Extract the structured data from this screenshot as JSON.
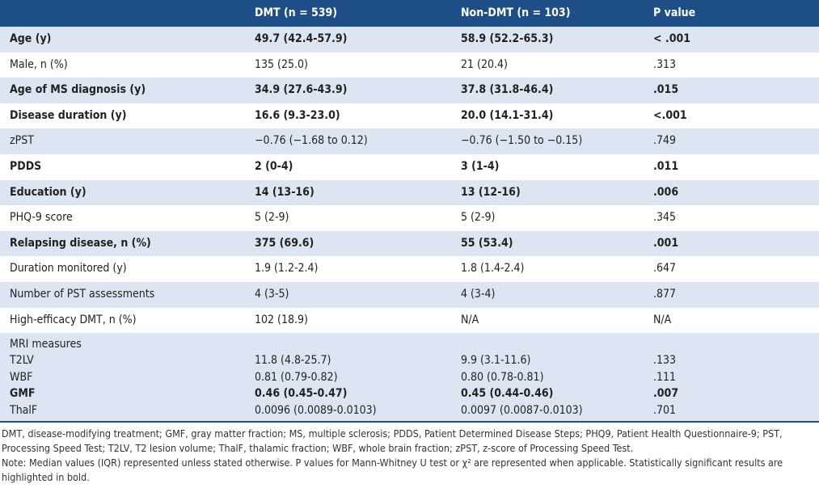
{
  "table": {
    "headers": [
      "DMT (n = 539)",
      "Non-DMT (n = 103)",
      "P value"
    ],
    "rows": [
      {
        "cells": [
          "Age (y)",
          "49.7 (42.4-57.9)",
          "58.9 (52.2-65.3)",
          "< .001"
        ],
        "bold": true
      },
      {
        "cells": [
          "Male, n (%)",
          "135 (25.0)",
          "21 (20.4)",
          ".313"
        ],
        "bold": false
      },
      {
        "cells": [
          "Age of MS diagnosis (y)",
          "34.9 (27.6-43.9)",
          "37.8 (31.8-46.4)",
          ".015"
        ],
        "bold": true
      },
      {
        "cells": [
          "Disease duration (y)",
          "16.6 (9.3-23.0)",
          "20.0 (14.1-31.4)",
          "<.001"
        ],
        "bold": true
      },
      {
        "cells": [
          "zPST",
          "−0.76 (−1.68 to 0.12)",
          "−0.76 (−1.50 to −0.15)",
          ".749"
        ],
        "bold": false
      },
      {
        "cells": [
          "PDDS",
          "2 (0-4)",
          "3 (1-4)",
          ".011"
        ],
        "bold": true
      },
      {
        "cells": [
          "Education (y)",
          "14 (13-16)",
          "13 (12-16)",
          ".006"
        ],
        "bold": true
      },
      {
        "cells": [
          "PHQ-9 score",
          "5 (2-9)",
          "5 (2-9)",
          ".345"
        ],
        "bold": false
      },
      {
        "cells": [
          "Relapsing disease, n (%)",
          "375 (69.6)",
          "55 (53.4)",
          ".001"
        ],
        "bold": true
      },
      {
        "cells": [
          "Duration monitored (y)",
          "1.9 (1.2-2.4)",
          "1.8 (1.4-2.4)",
          ".647"
        ],
        "bold": false
      },
      {
        "cells": [
          "Number of PST assessments",
          "4 (3-5)",
          "4 (3-4)",
          ".877"
        ],
        "bold": false
      },
      {
        "cells": [
          "High-efficacy DMT, n (%)",
          "102 (18.9)",
          "N/A",
          "N/A"
        ],
        "bold": false
      }
    ],
    "group": {
      "label": "MRI measures",
      "rows": [
        {
          "cells": [
            "T2LV",
            "11.8 (4.8-25.7)",
            "9.9 (3.1-11.6)",
            ".133"
          ],
          "bold": false
        },
        {
          "cells": [
            "WBF",
            "0.81 (0.79-0.82)",
            "0.80 (0.78-0.81)",
            ".111"
          ],
          "bold": false
        },
        {
          "cells": [
            "GMF",
            "0.46 (0.45-0.47)",
            "0.45 (0.44-0.46)",
            ".007"
          ],
          "bold": true
        },
        {
          "cells": [
            "ThalF",
            "0.0096 (0.0089-0.0103)",
            "0.0097 (0.0087-0.0103)",
            ".701"
          ],
          "bold": false
        }
      ]
    }
  },
  "footnotes": [
    "DMT, disease-modifying treatment; GMF, gray matter fraction; MS, multiple sclerosis; PDDS, Patient Determined Disease Steps; PHQ9, Patient Health Questionnaire-9; PST, Processing Speed Test; T2LV, T2 lesion volume; ThalF, thalamic fraction; WBF, whole brain fraction; zPST, z-score of Processing Speed Test.",
    "Note: Median values (IQR) represented unless stated otherwise. P values for Mann-Whitney U test or χ² are represented when applicable. Statistically significant results are highlighted in bold."
  ]
}
